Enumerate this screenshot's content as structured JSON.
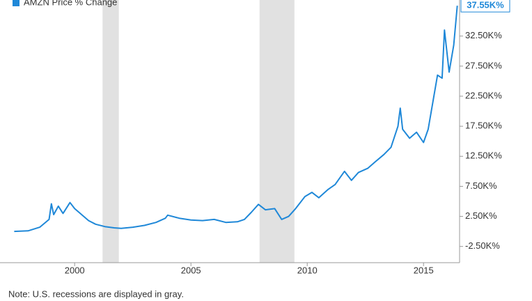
{
  "chart_data": {
    "type": "line",
    "note": "Note: U.S. recessions are displayed in gray.",
    "x": [
      1997.4,
      1998.0,
      1998.5,
      1998.9,
      1999.0,
      1999.1,
      1999.3,
      1999.5,
      1999.8,
      2000.0,
      2000.3,
      2000.6,
      2000.9,
      2001.3,
      2001.7,
      2002.0,
      2002.5,
      2003.0,
      2003.5,
      2003.9,
      2004.0,
      2004.5,
      2005.0,
      2005.5,
      2006.0,
      2006.5,
      2007.0,
      2007.3,
      2007.6,
      2007.9,
      2008.2,
      2008.6,
      2008.9,
      2009.2,
      2009.5,
      2009.9,
      2010.2,
      2010.5,
      2010.9,
      2011.2,
      2011.6,
      2011.9,
      2012.2,
      2012.6,
      2012.9,
      2013.3,
      2013.6,
      2013.9,
      2014.0,
      2014.1,
      2014.4,
      2014.7,
      2015.0,
      2015.2,
      2015.4,
      2015.6,
      2015.8,
      2015.9,
      2016.1,
      2016.3,
      2016.45
    ],
    "series": [
      {
        "name": "AMZN Price % Change",
        "color": "#1f88d8",
        "values": [
          0,
          100,
          700,
          2000,
          4600,
          2800,
          4200,
          3000,
          4800,
          3800,
          2800,
          1800,
          1200,
          800,
          600,
          500,
          700,
          1000,
          1500,
          2200,
          2700,
          2200,
          1900,
          1800,
          2000,
          1500,
          1600,
          2000,
          3200,
          4500,
          3600,
          3800,
          2000,
          2500,
          3800,
          5800,
          6500,
          5600,
          7000,
          7800,
          10000,
          8500,
          9800,
          10500,
          11500,
          12800,
          14000,
          17500,
          20500,
          17000,
          15500,
          16500,
          14800,
          17000,
          21500,
          26000,
          25500,
          33500,
          26500,
          31000,
          37550
        ],
        "value_labels": [
          null,
          null,
          null,
          null,
          null,
          null,
          null,
          null,
          null,
          null,
          null,
          null,
          null,
          null,
          null,
          null,
          null,
          null,
          null,
          null,
          null,
          null,
          null,
          null,
          null,
          null,
          null,
          null,
          null,
          null,
          null,
          null,
          null,
          null,
          null,
          null,
          null,
          null,
          null,
          null,
          null,
          null,
          null,
          null,
          null,
          null,
          null,
          null,
          null,
          null,
          null,
          null,
          null,
          null,
          null,
          null,
          null,
          null,
          null,
          null,
          "37.55K%"
        ]
      }
    ],
    "recessions": [
      [
        2001.2,
        2001.9
      ],
      [
        2007.95,
        2009.45
      ]
    ],
    "xlim": [
      1997.15,
      2016.55
    ],
    "xticks": [
      2000,
      2005,
      2010,
      2015
    ],
    "ylim": [
      -5200,
      38500
    ],
    "yticks": [
      {
        "value": -2500,
        "label": "-2.50K%"
      },
      {
        "value": 2500,
        "label": "2.50K%"
      },
      {
        "value": 7500,
        "label": "7.50K%"
      },
      {
        "value": 12500,
        "label": "12.50K%"
      },
      {
        "value": 17500,
        "label": "17.50K%"
      },
      {
        "value": 22500,
        "label": "22.50K%"
      },
      {
        "value": 27500,
        "label": "27.50K%"
      },
      {
        "value": 32500,
        "label": "32.50K%"
      }
    ],
    "grid": false,
    "legend": "top-left"
  }
}
